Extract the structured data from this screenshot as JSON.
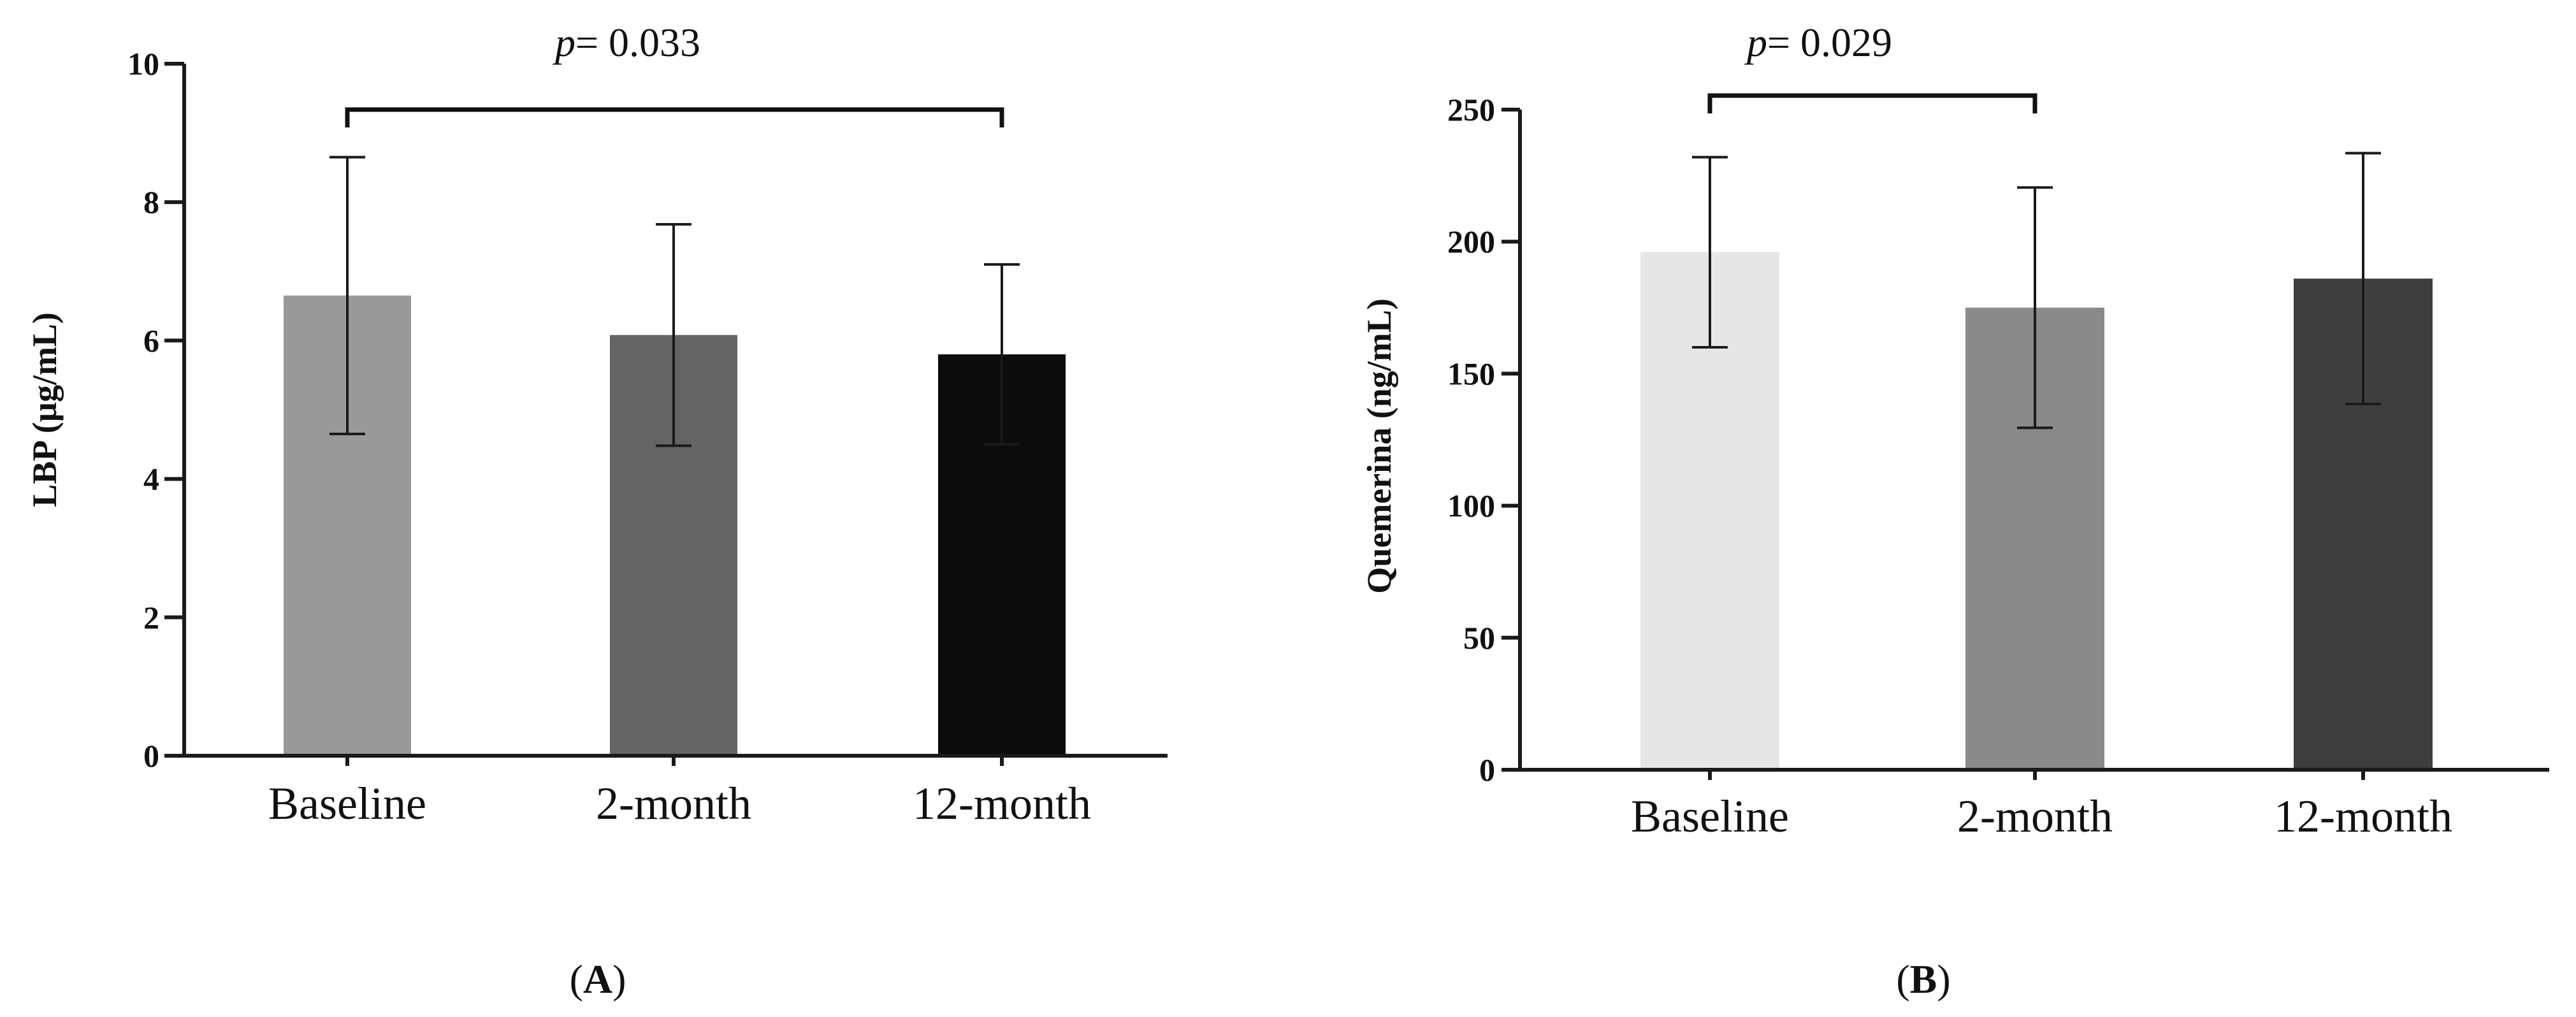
{
  "chart_data": [
    {
      "panel_label": "A",
      "type": "bar",
      "categories": [
        "Baseline",
        "2-month",
        "12-month"
      ],
      "values": [
        6.65,
        6.08,
        5.8
      ],
      "errors": [
        2.0,
        1.6,
        1.3
      ],
      "colors": [
        "#999999",
        "#646464",
        "#0c0c0c"
      ],
      "ylabel": "LBP (µg/mL)",
      "xlabel": "",
      "ylim": [
        0,
        10
      ],
      "yticks": [
        "0",
        "2",
        "4",
        "6",
        "8",
        "10"
      ],
      "significance": {
        "from": "Baseline",
        "to": "12-month",
        "p_italic": "p",
        "p_value": "= 0.033"
      }
    },
    {
      "panel_label": "B",
      "type": "bar",
      "categories": [
        "Baseline",
        "2-month",
        "12-month"
      ],
      "values": [
        196,
        175,
        186
      ],
      "errors": [
        36,
        45.5,
        47.5
      ],
      "colors": [
        "#e6e6e6",
        "#8a8a8a",
        "#3e3e3e"
      ],
      "ylabel": "Quemerina (ng/mL)",
      "xlabel": "",
      "ylim": [
        0,
        250
      ],
      "yticks": [
        "0",
        "50",
        "100",
        "150",
        "200",
        "250"
      ],
      "significance": {
        "from": "Baseline",
        "to": "2-month",
        "p_italic": "p",
        "p_value": "= 0.029"
      }
    }
  ]
}
